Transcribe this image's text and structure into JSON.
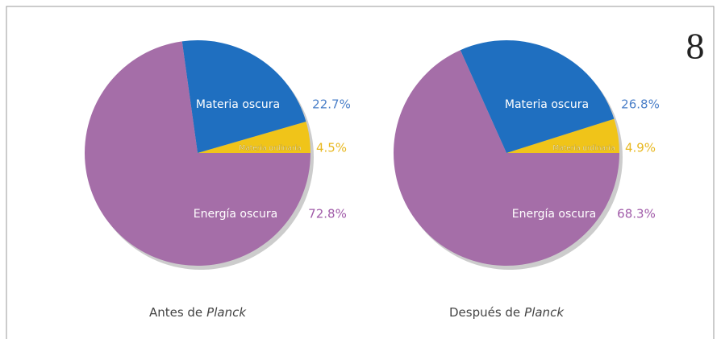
{
  "page_number": "8",
  "chart_data": [
    {
      "type": "pie",
      "title": [
        "Antes de",
        "Planck"
      ],
      "categories": [
        "Materia ordinaria",
        "Materia oscura",
        "Energía oscura"
      ],
      "values": [
        4.5,
        22.7,
        72.8
      ],
      "value_labels": [
        "4.5%",
        "22.7%",
        "72.8%"
      ],
      "colors": [
        "#f0c419",
        "#1f6fc0",
        "#a56ea8"
      ]
    },
    {
      "type": "pie",
      "title": [
        "Después de",
        "Planck"
      ],
      "categories": [
        "Materia ordinaria",
        "Materia oscura",
        "Energía oscura"
      ],
      "values": [
        4.9,
        26.8,
        68.3
      ],
      "value_labels": [
        "4.9%",
        "26.8%",
        "68.3%"
      ],
      "colors": [
        "#f0c419",
        "#1f6fc0",
        "#a56ea8"
      ]
    }
  ]
}
